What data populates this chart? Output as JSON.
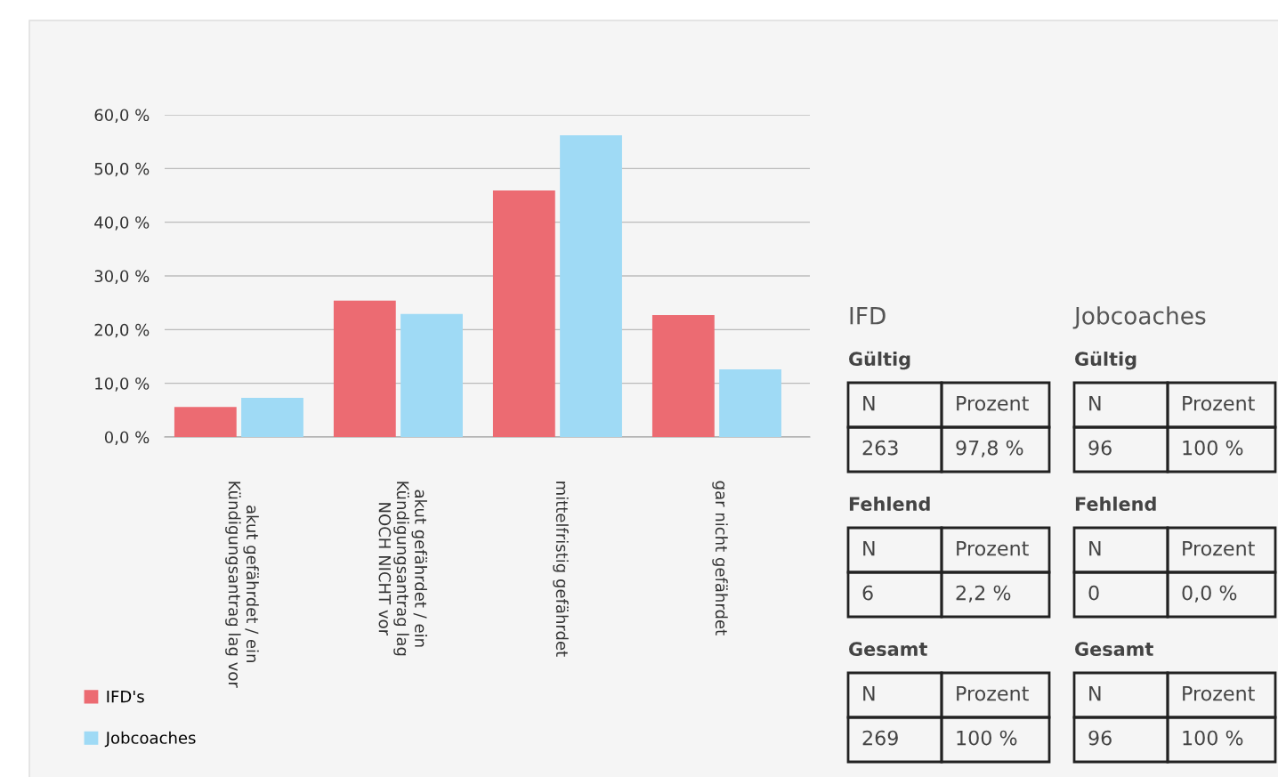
{
  "chart_data": [
    {
      "type": "bar",
      "categories": [
        "akut gefährdet / ein\nKündigungsantrag lag vor",
        "akut gefährdet / ein\nKündigungsantrag lag\nNOCH NICHT vor",
        "mittelfristig gefährdet",
        "gar nicht gefährdet"
      ],
      "series": [
        {
          "name": "IFD's",
          "color": "#ec6b72",
          "values": [
            5.6,
            25.4,
            45.9,
            22.7
          ]
        },
        {
          "name": "Jobcoaches",
          "color": "#9fdaf5",
          "values": [
            7.3,
            22.9,
            56.2,
            12.6
          ]
        }
      ],
      "ylim": [
        0,
        60
      ],
      "yticks": [
        {
          "value": 0,
          "label": "0,0 %"
        },
        {
          "value": 10,
          "label": "10,0 %"
        },
        {
          "value": 20,
          "label": "20,0 %"
        },
        {
          "value": 30,
          "label": "30,0 %"
        },
        {
          "value": 40,
          "label": "40,0 %"
        },
        {
          "value": 50,
          "label": "50,0 %"
        },
        {
          "value": 60,
          "label": "60,0 %"
        }
      ],
      "grid": "y",
      "legend": "bottom left"
    },
    {
      "type": "other",
      "title": "IFD",
      "annotations": [
        "Gültig",
        "N",
        "Prozent",
        "263",
        "97,8 %",
        "Fehlend",
        "N",
        "Prozent",
        "6",
        "2,2 %",
        "Gesamt",
        "N",
        "Prozent",
        "269",
        "100 %"
      ]
    },
    {
      "type": "other",
      "title": "Jobcoaches",
      "annotations": [
        "Gültig",
        "N",
        "Prozent",
        "96",
        "100 %",
        "Fehlend",
        "N",
        "Prozent",
        "0",
        "0,0 %",
        "Gesamt",
        "N",
        "Prozent",
        "96",
        "100 %"
      ]
    }
  ]
}
